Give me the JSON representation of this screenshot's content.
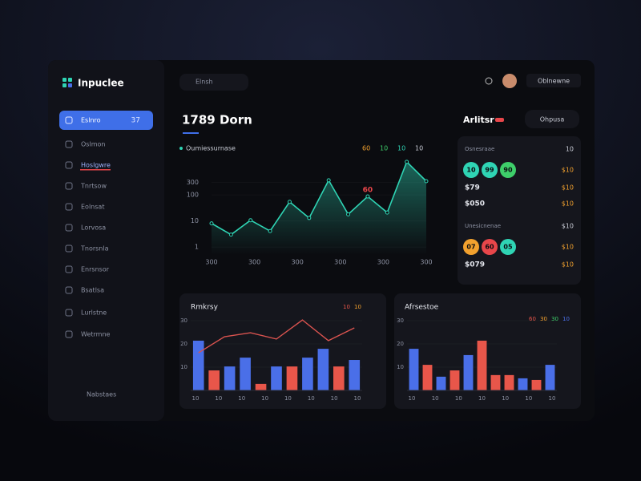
{
  "brand": "Inpuclee",
  "search": "Elnsh",
  "top_button": "Oblnewne",
  "nav": [
    "Eslnro",
    "Oslmon",
    "Hoslgwre",
    "Tnrtsow",
    "Eolnsat",
    "Lorvosa",
    "Tnorsnla",
    "Enrsnsor",
    "Bsatlsa",
    "Lurlstne",
    "Wetrmne"
  ],
  "nav_badge": "37",
  "footer": "Nabstaes",
  "main_chart": {
    "type": "line",
    "title": "1789 Dorn",
    "legend": "Oumiessurnase",
    "legend_right": [
      "60",
      "10",
      "10",
      "10"
    ],
    "annotation": "60",
    "x_labels": [
      "300",
      "300",
      "300",
      "300",
      "300",
      "300"
    ],
    "values": [
      8.1,
      3,
      10.7,
      4.1,
      54,
      13,
      362,
      18,
      87,
      21,
      1840,
      335
    ],
    "ylim": [
      0.5,
      3000
    ],
    "yticks": [
      1,
      10,
      100,
      300
    ],
    "log_scale": true,
    "color": "#2fd4b4"
  },
  "side_panel": {
    "title": "Arlitsr",
    "button": "Ohpusa",
    "sections": [
      {
        "heading": "Osnesraae",
        "heading_value": "10",
        "circles": [
          "10",
          "99",
          "90"
        ],
        "colors": [
          "#2fd4b4",
          "#2fd4b4",
          "#3ecf6a"
        ],
        "circle_value": "$10",
        "rows": [
          [
            "$79",
            "$10"
          ],
          [
            "$050",
            "$10"
          ]
        ]
      },
      {
        "heading": "Unesicnenae",
        "heading_value": "$10",
        "circles": [
          "07",
          "60",
          "05"
        ],
        "colors": [
          "#f2a12e",
          "#e8464a",
          "#2fd4b4"
        ],
        "circle_value": "$10",
        "rows": [
          [
            "$079",
            "$10"
          ]
        ]
      }
    ]
  },
  "bar_charts": [
    {
      "type": "bar",
      "title": "Rmkrsy",
      "legend": [
        "10",
        "10"
      ],
      "values": [
        21.4,
        8.6,
        10.3,
        14.1,
        2.8,
        10.3,
        10.3,
        14.1,
        17.9,
        10.3,
        13.1
      ],
      "colors": [
        "#4a6fe8",
        "#e8564a",
        "#4a6fe8",
        "#4a6fe8",
        "#e8564a",
        "#4a6fe8",
        "#e8564a",
        "#4a6fe8",
        "#4a6fe8",
        "#e8564a",
        "#4a6fe8"
      ],
      "line": [
        16.2,
        23.1,
        24.8,
        22.1,
        30.3,
        21.4,
        26.9
      ],
      "line_color": "#d9534f",
      "x_labels": [
        "10",
        "10",
        "10",
        "10",
        "10",
        "10",
        "10",
        "10"
      ],
      "ylim": [
        0,
        30
      ],
      "yticks": [
        10,
        20,
        30
      ]
    },
    {
      "type": "bar",
      "title": "Afrsestoe",
      "legend": [
        "60",
        "30",
        "30",
        "10"
      ],
      "values": [
        17.9,
        11,
        5.9,
        8.6,
        15.2,
        21.4,
        6.6,
        6.6,
        5.2,
        4.5,
        11
      ],
      "colors": [
        "#4a6fe8",
        "#e8564a",
        "#4a6fe8",
        "#e8564a",
        "#4a6fe8",
        "#e8564a",
        "#e8564a",
        "#e8564a",
        "#4a6fe8",
        "#e8564a",
        "#4a6fe8"
      ],
      "x_labels": [
        "10",
        "10",
        "10",
        "10",
        "10",
        "10",
        "10"
      ],
      "ylim": [
        0,
        30
      ],
      "yticks": [
        10,
        20,
        30
      ]
    }
  ]
}
